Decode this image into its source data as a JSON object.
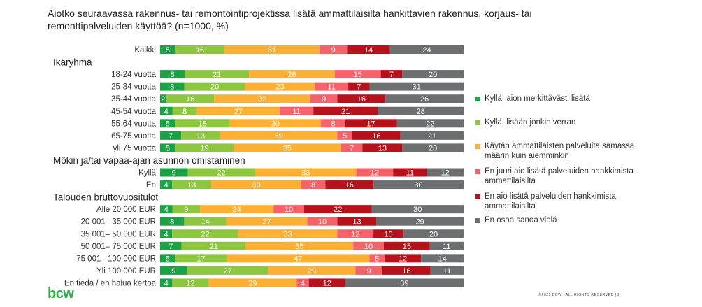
{
  "title": "Aiotko seuraavassa rakennus- tai remontointiprojektissa lisätä ammattilaisilta hankittavien rakennus, korjaus- tai remonttipalveluiden käyttöä? (n=1000, %)",
  "logo": "bcw",
  "footer": "©2021    BCW . ALL RIGHTS RESERVED | 2",
  "chart_data": {
    "type": "bar",
    "orientation": "horizontal",
    "stacked": true,
    "legend_position": "right",
    "series": [
      {
        "name": "Kyllä, aion merkittävästi lisätä",
        "color": "#1aa245"
      },
      {
        "name": "Kyllä, lisään jonkin verran",
        "color": "#8dc63f"
      },
      {
        "name": "Käytän ammattilaisten palveluita samassa määrin kuin aiemminkin",
        "color": "#fbb034"
      },
      {
        "name": "En juuri aio lisätä palveluiden hankkimista ammattilaisilta",
        "color": "#f5626a"
      },
      {
        "name": "En aio lisätä palveluiden hankkimista ammattilaisilta",
        "color": "#b7121b"
      },
      {
        "name": "En osaa sanoa vielä",
        "color": "#6d6e70"
      }
    ],
    "rows": [
      {
        "type": "bar",
        "label": "Kaikki",
        "values": [
          5,
          16,
          31,
          9,
          14,
          24
        ]
      },
      {
        "type": "header",
        "label": "Ikäryhmä"
      },
      {
        "type": "bar",
        "label": "18-24 vuotta",
        "values": [
          8,
          21,
          28,
          15,
          7,
          20
        ]
      },
      {
        "type": "bar",
        "label": "25-34 vuotta",
        "values": [
          8,
          20,
          23,
          11,
          7,
          31
        ]
      },
      {
        "type": "bar",
        "label": "35-44 vuotta",
        "values": [
          2,
          16,
          32,
          9,
          16,
          26
        ]
      },
      {
        "type": "bar",
        "label": "45-54 vuotta",
        "values": [
          4,
          8,
          27,
          11,
          21,
          28
        ]
      },
      {
        "type": "bar",
        "label": "55-64 vuotta",
        "values": [
          5,
          18,
          30,
          8,
          17,
          22
        ]
      },
      {
        "type": "bar",
        "label": "65-75 vuotta",
        "values": [
          7,
          13,
          39,
          5,
          16,
          21
        ]
      },
      {
        "type": "bar",
        "label": "yli 75 vuotta",
        "values": [
          5,
          19,
          35,
          7,
          13,
          20
        ]
      },
      {
        "type": "header",
        "label": "Mökin ja/tai vapaa-ajan asunnon omistaminen"
      },
      {
        "type": "bar",
        "label": "Kyllä",
        "values": [
          9,
          22,
          33,
          12,
          11,
          12
        ]
      },
      {
        "type": "bar",
        "label": "En",
        "values": [
          4,
          13,
          30,
          8,
          16,
          30
        ]
      },
      {
        "type": "header",
        "label": "Talouden bruttovuositulot"
      },
      {
        "type": "bar",
        "label": "Alle 20 000 EUR",
        "values": [
          4,
          9,
          24,
          10,
          22,
          30
        ]
      },
      {
        "type": "bar",
        "label": "20 001– 35 000 EUR",
        "values": [
          8,
          14,
          27,
          10,
          13,
          29
        ]
      },
      {
        "type": "bar",
        "label": "35 001– 50 000 EUR",
        "values": [
          4,
          22,
          33,
          12,
          10,
          20
        ]
      },
      {
        "type": "bar",
        "label": "50 001– 75 000 EUR",
        "values": [
          7,
          21,
          35,
          10,
          15,
          11
        ]
      },
      {
        "type": "bar",
        "label": "75 001– 100 000 EUR",
        "values": [
          5,
          17,
          47,
          5,
          12,
          14
        ]
      },
      {
        "type": "bar",
        "label": "Yli 100 000 EUR",
        "values": [
          9,
          27,
          29,
          9,
          16,
          11
        ]
      },
      {
        "type": "bar",
        "label": "En tiedä / en halua kertoa",
        "values": [
          4,
          12,
          29,
          4,
          12,
          39
        ]
      }
    ]
  }
}
